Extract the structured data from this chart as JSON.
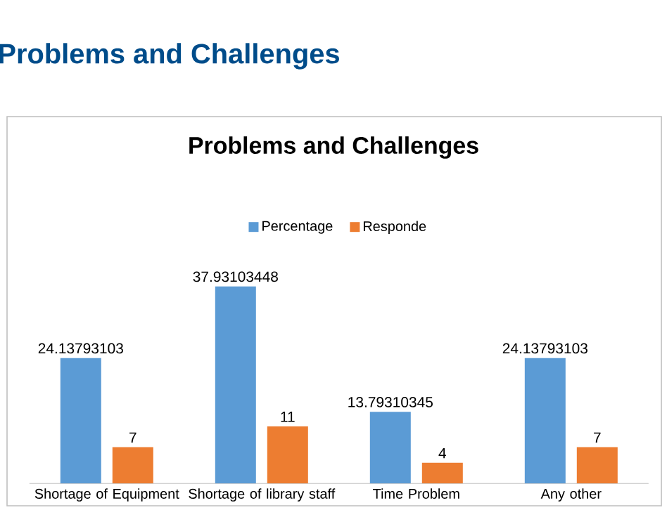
{
  "chart_data": {
    "type": "bar",
    "title": "Problems and Challenges",
    "annotations": [
      "Problems and Challenges"
    ],
    "categories": [
      "Shortage of Equipment",
      "Shortage of library staff",
      "Time Problem",
      "Any other"
    ],
    "series": [
      {
        "name": "Percentage",
        "color": "#5b9bd5",
        "values": [
          24.13793103,
          37.93103448,
          13.79310345,
          24.13793103
        ]
      },
      {
        "name": "Responde",
        "color": "#ed7d31",
        "values": [
          7,
          11,
          4,
          7
        ]
      }
    ],
    "data_labels": true,
    "legend": "top"
  }
}
